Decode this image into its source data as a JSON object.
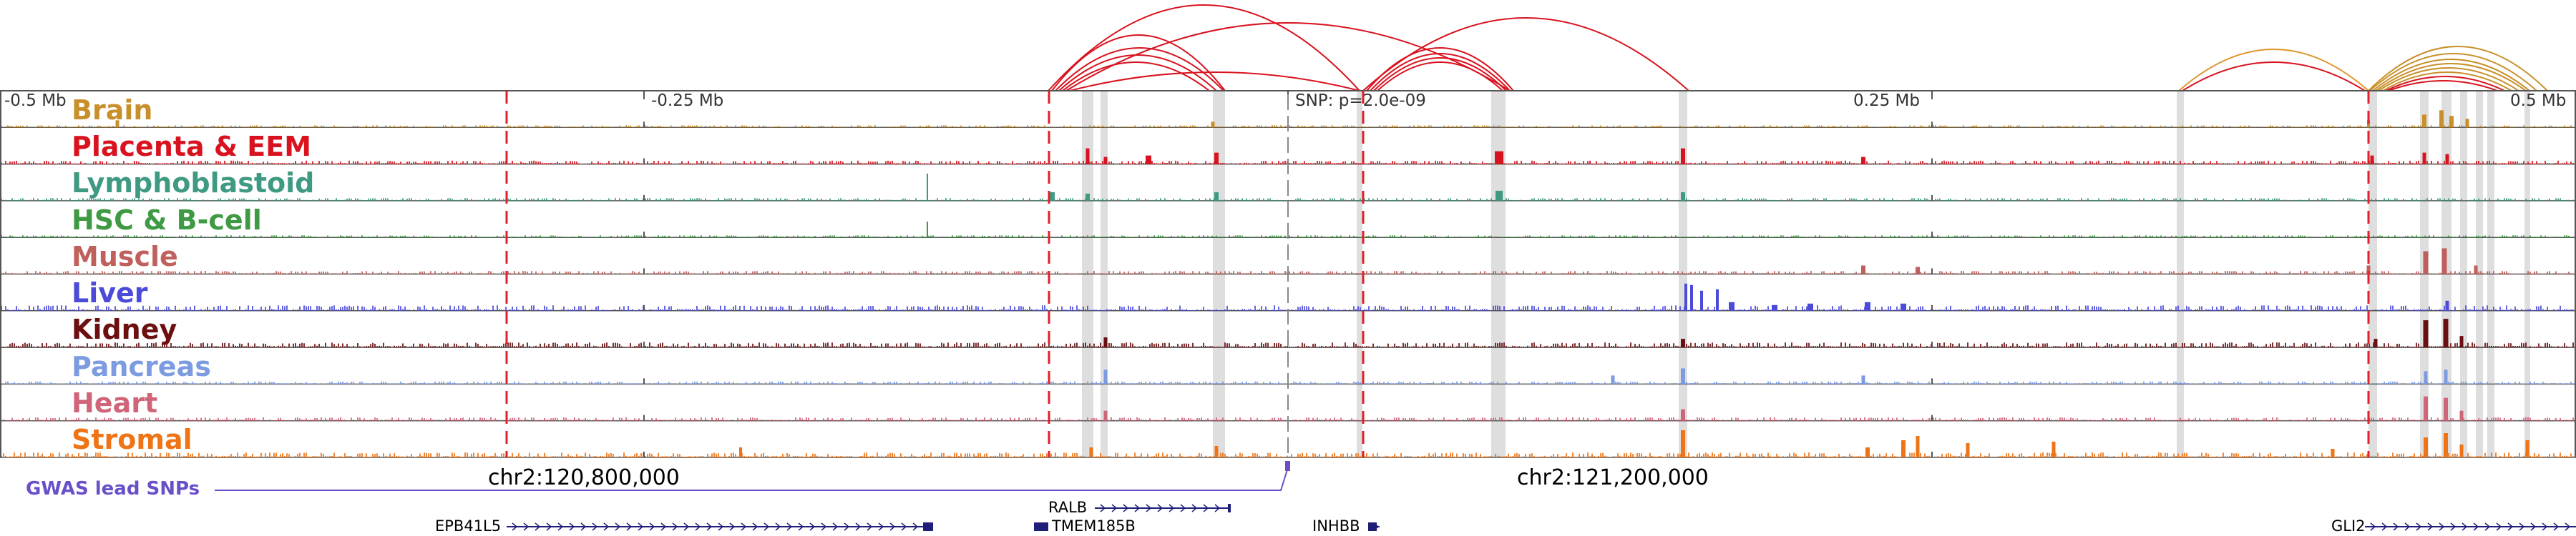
{
  "colors": {
    "background": "#ffffff",
    "track_border": "#555555",
    "dashed_marker": "#e0202a",
    "highlight_band": "#d8d8d8",
    "gwas": "#6a4fc9",
    "gene": "#1f1f7a"
  },
  "axis": {
    "start_label": "-0.5 Mb",
    "left_mid_label": "-0.25 Mb",
    "snp_label": "SNP: p=2.0e-09",
    "right_mid_label": "0.25 Mb",
    "end_label": "0.5 Mb"
  },
  "tracks": [
    {
      "name": "Brain",
      "color": "#c8902a",
      "scale": 0.35
    },
    {
      "name": "Placenta & EEM",
      "color": "#d8131f",
      "scale": 0.6
    },
    {
      "name": "Lymphoblastoid",
      "color": "#3f9a83",
      "scale": 0.45
    },
    {
      "name": "HSC & B-cell",
      "color": "#3f9a44",
      "scale": 0.35
    },
    {
      "name": "Muscle",
      "color": "#c0605c",
      "scale": 0.55
    },
    {
      "name": "Liver",
      "color": "#4b4bd8",
      "scale": 1.0
    },
    {
      "name": "Kidney",
      "color": "#6b0f10",
      "scale": 0.9
    },
    {
      "name": "Pancreas",
      "color": "#7c9be0",
      "scale": 0.45
    },
    {
      "name": "Heart",
      "color": "#d06478",
      "scale": 0.6
    },
    {
      "name": "Stromal",
      "color": "#ee7416",
      "scale": 0.9
    }
  ],
  "coordinates": {
    "left": "chr2:120,800,000",
    "right": "chr2:121,200,000"
  },
  "gwas": {
    "label": "GWAS lead SNPs"
  },
  "genes": [
    {
      "name": "EPB41L5",
      "label_side": "left"
    },
    {
      "name": "RALB",
      "label_side": "left"
    },
    {
      "name": "TMEM185B",
      "label_side": "right"
    },
    {
      "name": "INHBB",
      "label_side": "left"
    },
    {
      "name": "GLI2",
      "label_side": "left"
    }
  ]
}
